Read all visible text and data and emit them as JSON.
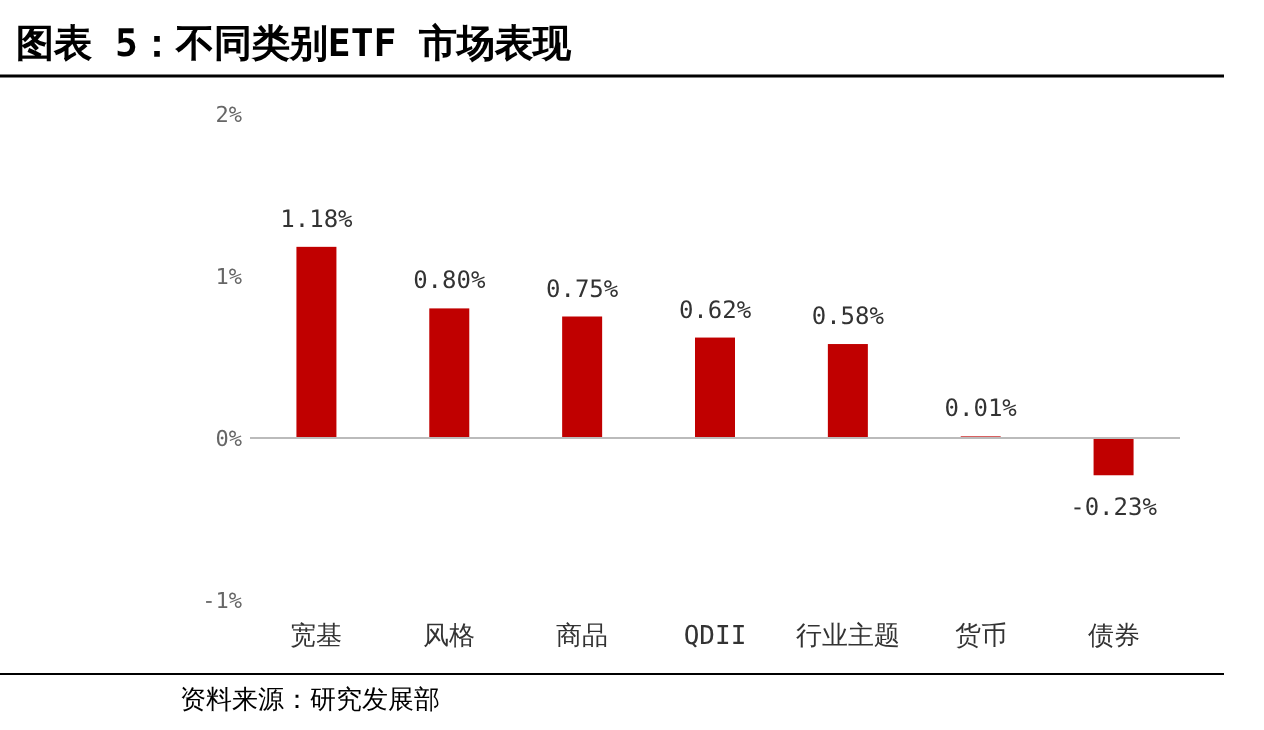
{
  "chart_data": {
    "type": "bar",
    "title": "图表 5：不同类别ETF 市场表现",
    "categories": [
      "宽基",
      "风格",
      "商品",
      "QDII",
      "行业主题",
      "货币",
      "债券"
    ],
    "values": [
      1.18,
      0.8,
      0.75,
      0.62,
      0.58,
      0.01,
      -0.23
    ],
    "value_labels": [
      "1.18%",
      "0.80%",
      "0.75%",
      "0.62%",
      "0.58%",
      "0.01%",
      "-0.23%"
    ],
    "color": "#c00000",
    "ylim": [
      -1,
      2
    ],
    "yticks": [
      {
        "value": -1,
        "label": "-1%"
      },
      {
        "value": 0,
        "label": "0%"
      },
      {
        "value": 1,
        "label": "1%"
      },
      {
        "value": 2,
        "label": "2%"
      }
    ],
    "annotations": [
      "资料来源：研究发展部"
    ]
  }
}
